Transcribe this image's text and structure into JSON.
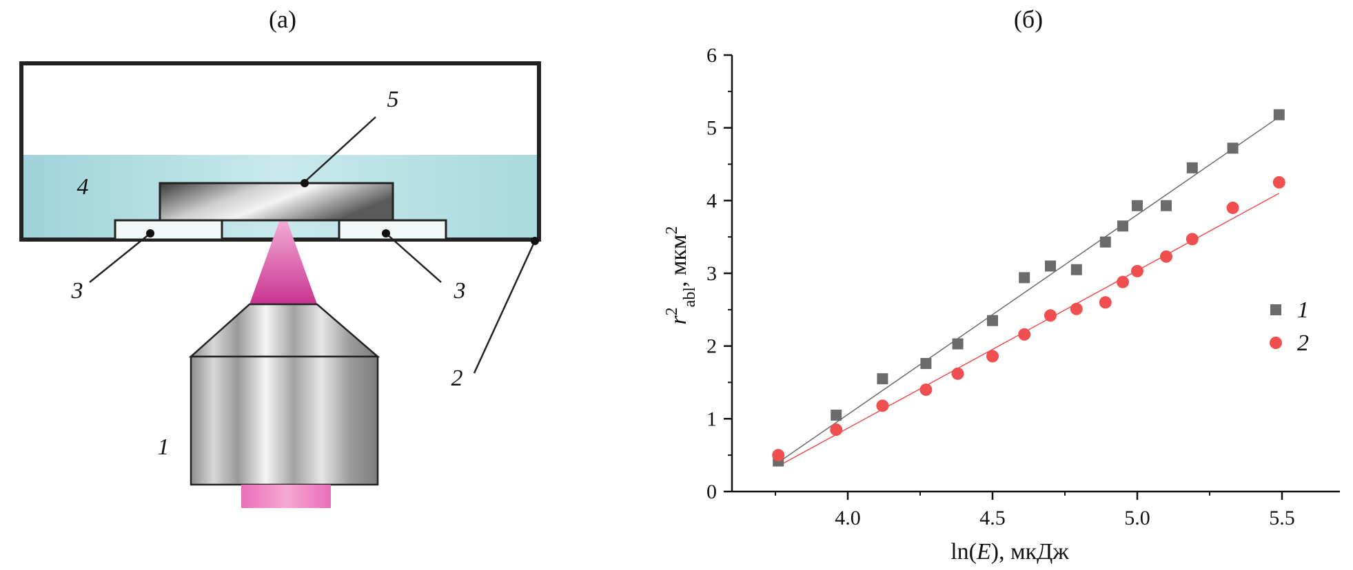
{
  "panel_a": {
    "label": "(а)",
    "callouts": {
      "objective": "1",
      "cell": "2",
      "spacer_left": "3",
      "spacer_right": "3",
      "liquid": "4",
      "sample": "5"
    }
  },
  "panel_b": {
    "label": "(б)"
  },
  "colors": {
    "series1": "#6b6b6b",
    "series2": "#ef4f4f",
    "water": "#b8e0e4",
    "laser": "#d63a9c"
  },
  "chart_data": {
    "type": "scatter",
    "xlabel": "ln(E), мкДж",
    "ylabel": "r2abl, мкм2",
    "ylabel_parts": {
      "main": "r",
      "sup1": "2",
      "sub": "abl",
      "rest": ", мкм",
      "sup2": "2"
    },
    "xlabel_parts": {
      "pre": "ln(",
      "var": "E",
      "post": "), мкДж"
    },
    "xlim": [
      3.6,
      5.7
    ],
    "ylim": [
      0,
      6
    ],
    "x_ticks": [
      4.0,
      4.5,
      5.0,
      5.5
    ],
    "x_tick_labels": [
      "4.0",
      "4.5",
      "5.0",
      "5.5"
    ],
    "y_ticks": [
      0,
      1,
      2,
      3,
      4,
      5,
      6
    ],
    "y_tick_labels": [
      "0",
      "1",
      "2",
      "3",
      "4",
      "5",
      "6"
    ],
    "legend_position": "right",
    "series": [
      {
        "name": "1",
        "marker": "square",
        "points": [
          [
            3.76,
            0.42
          ],
          [
            3.96,
            1.05
          ],
          [
            4.12,
            1.55
          ],
          [
            4.27,
            1.76
          ],
          [
            4.38,
            2.03
          ],
          [
            4.5,
            2.35
          ],
          [
            4.61,
            2.94
          ],
          [
            4.7,
            3.1
          ],
          [
            4.79,
            3.05
          ],
          [
            4.89,
            3.43
          ],
          [
            4.95,
            3.65
          ],
          [
            5.0,
            3.93
          ],
          [
            5.1,
            3.93
          ],
          [
            5.19,
            4.45
          ],
          [
            5.33,
            4.72
          ],
          [
            5.49,
            5.18
          ]
        ],
        "fit": [
          [
            3.76,
            0.4
          ],
          [
            5.49,
            5.15
          ]
        ]
      },
      {
        "name": "2",
        "marker": "circle",
        "points": [
          [
            3.76,
            0.5
          ],
          [
            3.96,
            0.85
          ],
          [
            4.12,
            1.18
          ],
          [
            4.27,
            1.4
          ],
          [
            4.38,
            1.62
          ],
          [
            4.5,
            1.86
          ],
          [
            4.61,
            2.16
          ],
          [
            4.7,
            2.42
          ],
          [
            4.79,
            2.51
          ],
          [
            4.89,
            2.6
          ],
          [
            4.95,
            2.88
          ],
          [
            5.0,
            3.03
          ],
          [
            5.1,
            3.23
          ],
          [
            5.19,
            3.47
          ],
          [
            5.33,
            3.9
          ],
          [
            5.49,
            4.25
          ]
        ],
        "fit": [
          [
            3.76,
            0.35
          ],
          [
            5.49,
            4.1
          ]
        ]
      }
    ]
  }
}
